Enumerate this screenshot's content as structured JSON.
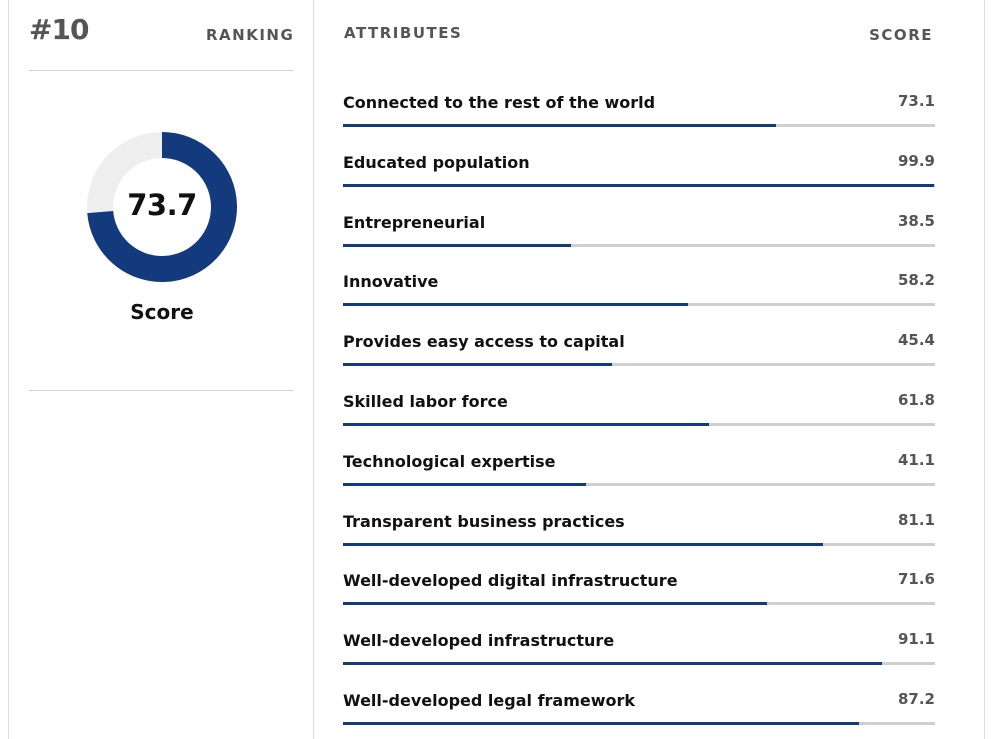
{
  "ranking": {
    "number": "#10",
    "label": "RANKING"
  },
  "overall": {
    "score": 73.7,
    "score_text": "73.7",
    "label": "Score"
  },
  "headers": {
    "attributes": "ATTRIBUTES",
    "score": "SCORE"
  },
  "colors": {
    "fill": "#133a7c",
    "track": "#cfcfcf",
    "donut_track": "#eeeeee"
  },
  "chart_data": [
    {
      "type": "pie",
      "values": [
        73.7,
        26.3
      ],
      "center_label": "73.7",
      "caption": "Score"
    },
    {
      "type": "bar",
      "orientation": "horizontal",
      "ylim": [
        0,
        100
      ],
      "categories": [
        "Connected to the rest of the world",
        "Educated population",
        "Entrepreneurial",
        "Innovative",
        "Provides easy access to capital",
        "Skilled labor force",
        "Technological expertise",
        "Transparent business practices",
        "Well-developed digital infrastructure",
        "Well-developed infrastructure",
        "Well-developed legal framework"
      ],
      "values": [
        73.1,
        99.9,
        38.5,
        58.2,
        45.4,
        61.8,
        41.1,
        81.1,
        71.6,
        91.1,
        87.2
      ],
      "value_labels": [
        "73.1",
        "99.9",
        "38.5",
        "58.2",
        "45.4",
        "61.8",
        "41.1",
        "81.1",
        "71.6",
        "91.1",
        "87.2"
      ]
    }
  ]
}
